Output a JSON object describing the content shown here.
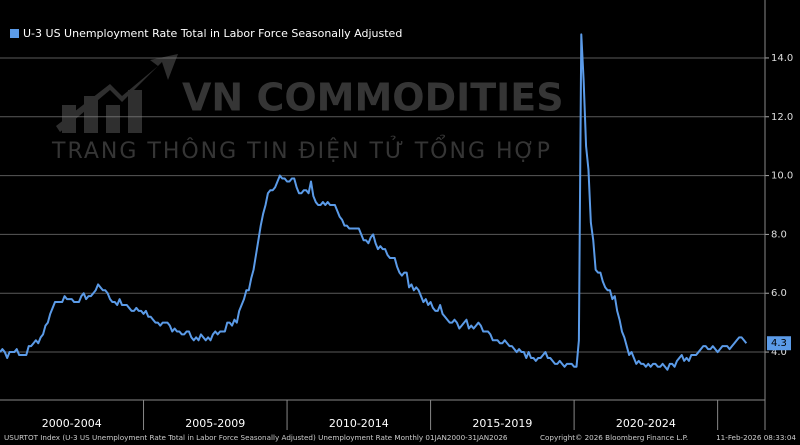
{
  "chart_data": {
    "type": "line",
    "series": [
      {
        "name": "U-3 US Unemployment Rate Total in Labor Force Seasonally Adjusted",
        "color": "#5b9be8",
        "values": [
          4.0,
          4.1,
          4.0,
          3.8,
          4.0,
          4.0,
          4.0,
          4.1,
          3.9,
          3.9,
          3.9,
          3.9,
          4.2,
          4.2,
          4.3,
          4.4,
          4.3,
          4.5,
          4.6,
          4.9,
          5.0,
          5.3,
          5.5,
          5.7,
          5.7,
          5.7,
          5.7,
          5.9,
          5.8,
          5.8,
          5.8,
          5.7,
          5.7,
          5.7,
          5.9,
          6.0,
          5.8,
          5.9,
          5.9,
          6.0,
          6.1,
          6.3,
          6.2,
          6.1,
          6.1,
          6.0,
          5.8,
          5.7,
          5.7,
          5.6,
          5.8,
          5.6,
          5.6,
          5.6,
          5.5,
          5.4,
          5.4,
          5.5,
          5.4,
          5.4,
          5.3,
          5.4,
          5.2,
          5.2,
          5.1,
          5.0,
          5.0,
          4.9,
          5.0,
          5.0,
          5.0,
          4.9,
          4.7,
          4.8,
          4.7,
          4.7,
          4.6,
          4.6,
          4.7,
          4.7,
          4.5,
          4.4,
          4.5,
          4.4,
          4.6,
          4.5,
          4.4,
          4.5,
          4.4,
          4.6,
          4.7,
          4.6,
          4.7,
          4.7,
          4.7,
          5.0,
          5.0,
          4.9,
          5.1,
          5.0,
          5.4,
          5.6,
          5.8,
          6.1,
          6.1,
          6.5,
          6.8,
          7.3,
          7.8,
          8.3,
          8.7,
          9.0,
          9.4,
          9.5,
          9.5,
          9.6,
          9.8,
          10.0,
          9.9,
          9.9,
          9.8,
          9.8,
          9.9,
          9.9,
          9.6,
          9.4,
          9.4,
          9.5,
          9.5,
          9.4,
          9.8,
          9.3,
          9.1,
          9.0,
          9.0,
          9.1,
          9.0,
          9.1,
          9.0,
          9.0,
          9.0,
          8.8,
          8.6,
          8.5,
          8.3,
          8.3,
          8.2,
          8.2,
          8.2,
          8.2,
          8.2,
          8.0,
          7.8,
          7.8,
          7.7,
          7.9,
          8.0,
          7.7,
          7.5,
          7.6,
          7.5,
          7.5,
          7.3,
          7.2,
          7.2,
          7.2,
          6.9,
          6.7,
          6.6,
          6.7,
          6.7,
          6.2,
          6.3,
          6.1,
          6.2,
          6.1,
          5.9,
          5.7,
          5.8,
          5.6,
          5.7,
          5.5,
          5.4,
          5.4,
          5.6,
          5.3,
          5.2,
          5.1,
          5.0,
          5.0,
          5.1,
          5.0,
          4.8,
          4.9,
          5.0,
          5.1,
          4.8,
          4.9,
          4.8,
          4.9,
          5.0,
          4.9,
          4.7,
          4.7,
          4.7,
          4.6,
          4.4,
          4.4,
          4.4,
          4.3,
          4.3,
          4.4,
          4.3,
          4.2,
          4.2,
          4.1,
          4.0,
          4.1,
          4.0,
          4.0,
          3.8,
          4.0,
          3.8,
          3.8,
          3.7,
          3.8,
          3.8,
          3.9,
          4.0,
          3.8,
          3.8,
          3.7,
          3.6,
          3.6,
          3.7,
          3.6,
          3.5,
          3.6,
          3.6,
          3.6,
          3.5,
          3.5,
          4.4,
          14.8,
          13.2,
          11.0,
          10.2,
          8.4,
          7.8,
          6.8,
          6.7,
          6.7,
          6.4,
          6.2,
          6.1,
          6.1,
          5.8,
          5.9,
          5.4,
          5.1,
          4.7,
          4.5,
          4.2,
          3.9,
          4.0,
          3.8,
          3.6,
          3.7,
          3.6,
          3.6,
          3.5,
          3.6,
          3.5,
          3.6,
          3.6,
          3.5,
          3.5,
          3.6,
          3.5,
          3.4,
          3.6,
          3.6,
          3.5,
          3.7,
          3.8,
          3.9,
          3.7,
          3.8,
          3.7,
          3.9,
          3.9,
          3.9,
          4.0,
          4.1,
          4.2,
          4.2,
          4.1,
          4.1,
          4.2,
          4.1,
          4.0,
          4.1,
          4.2,
          4.2,
          4.2,
          4.1,
          4.2,
          4.3,
          4.4,
          4.5,
          4.5,
          4.4,
          4.3
        ]
      }
    ],
    "xlim": [
      2000,
      2026.65
    ],
    "xticks": [
      {
        "value": 2000,
        "label": "2000-2004"
      },
      {
        "value": 2005,
        "label": "2005-2009"
      },
      {
        "value": 2010,
        "label": "2010-2014"
      },
      {
        "value": 2015,
        "label": "2015-2019"
      },
      {
        "value": 2020,
        "label": "2020-2024"
      }
    ],
    "ylim": [
      2.37,
      15.97
    ],
    "yticks": [
      {
        "value": 4,
        "label": "4.0"
      },
      {
        "value": 6,
        "label": "6.0"
      },
      {
        "value": 8,
        "label": "8.0"
      },
      {
        "value": 10,
        "label": "10.0"
      },
      {
        "value": 12,
        "label": "12.0"
      },
      {
        "value": 14,
        "label": "14.0"
      }
    ],
    "grid": true,
    "footer": "USURTOT Index (U-3 US Unemployment Rate Total in Labor Force Seasonally Adjusted) Unemployment Rate Monthly 01JAN2000-31JAN2026",
    "copyright": "Copyright© 2026 Bloomberg Finance L.P.",
    "timestamp": "11-Feb-2026 08:33:04",
    "watermark": {
      "brand": "VN COMMODITIES",
      "tagline": "TRANG THÔNG TIN ĐIỆN TỬ TỔNG HỢP"
    }
  }
}
